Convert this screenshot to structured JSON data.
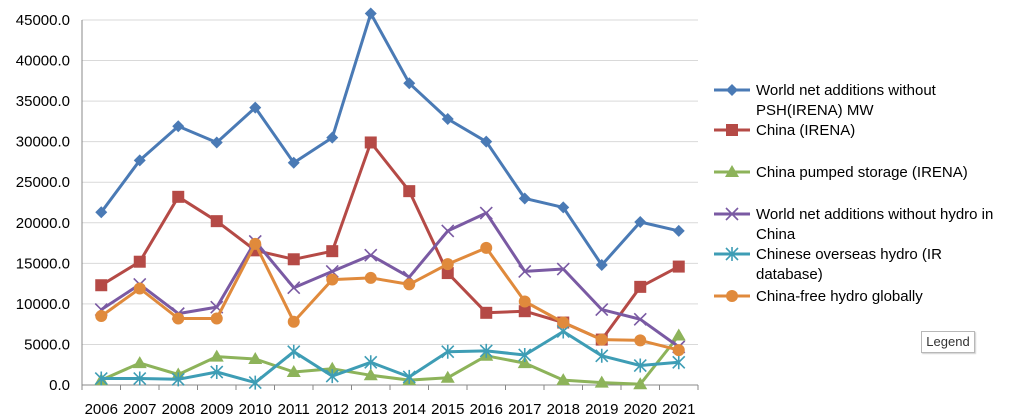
{
  "chart_data": {
    "type": "line",
    "x": [
      "2006",
      "2007",
      "2008",
      "2009",
      "2010",
      "2011",
      "2012",
      "2013",
      "2014",
      "2015",
      "2016",
      "2017",
      "2018",
      "2019",
      "2020",
      "2021"
    ],
    "ylim": [
      0,
      45000
    ],
    "yticks": [
      "0.0",
      "5000.0",
      "10000.0",
      "15000.0",
      "20000.0",
      "25000.0",
      "30000.0",
      "35000.0",
      "40000.0",
      "45000.0"
    ],
    "grid": true,
    "legend_position": "right",
    "series": [
      {
        "name": "World net additions without PSH(IRENA) MW",
        "legend_lines": [
          "World net additions without",
          "PSH(IRENA) MW"
        ],
        "color": "#4a7ab5",
        "marker": "diamond",
        "values": [
          21300,
          27700,
          31900,
          29900,
          34200,
          27400,
          30500,
          45800,
          37200,
          32800,
          30000,
          23000,
          21900,
          14800,
          20100,
          19000
        ]
      },
      {
        "name": "China (IRENA)",
        "legend_lines": [
          "China (IRENA)"
        ],
        "color": "#b54a46",
        "marker": "square",
        "values": [
          12300,
          15200,
          23200,
          20200,
          16600,
          15500,
          16500,
          29900,
          23900,
          13800,
          8900,
          9100,
          7700,
          5600,
          12100,
          14600
        ]
      },
      {
        "name": "China pumped storage (IRENA)",
        "legend_lines": [
          "China pumped storage (IRENA)"
        ],
        "color": "#8db35a",
        "marker": "triangle",
        "values": [
          600,
          2700,
          1300,
          3500,
          3200,
          1600,
          2000,
          1200,
          600,
          900,
          3600,
          2700,
          600,
          300,
          100,
          6100
        ]
      },
      {
        "name": "World net additions without hydro in China",
        "legend_lines": [
          "World net additions without hydro in",
          "China"
        ],
        "color": "#7a5aa3",
        "marker": "x",
        "values": [
          9300,
          12400,
          8800,
          9600,
          17700,
          12000,
          14000,
          16000,
          13300,
          19000,
          21200,
          14000,
          14300,
          9300,
          8100,
          4700
        ]
      },
      {
        "name": "Chinese overseas hydro (IR database)",
        "legend_lines": [
          "Chinese overseas  hydro (IR",
          "database)"
        ],
        "color": "#3e9db5",
        "marker": "star",
        "values": [
          800,
          800,
          700,
          1600,
          300,
          4100,
          1100,
          2800,
          1000,
          4100,
          4200,
          3700,
          6600,
          3600,
          2400,
          2800
        ]
      },
      {
        "name": "China-free hydro globally",
        "legend_lines": [
          "China-free hydro globally"
        ],
        "color": "#e08a3c",
        "marker": "circle",
        "values": [
          8500,
          11900,
          8200,
          8200,
          17400,
          7800,
          13000,
          13200,
          12400,
          14900,
          16900,
          10300,
          7700,
          5600,
          5500,
          4300
        ]
      }
    ]
  },
  "legend_button_label": "Legend"
}
